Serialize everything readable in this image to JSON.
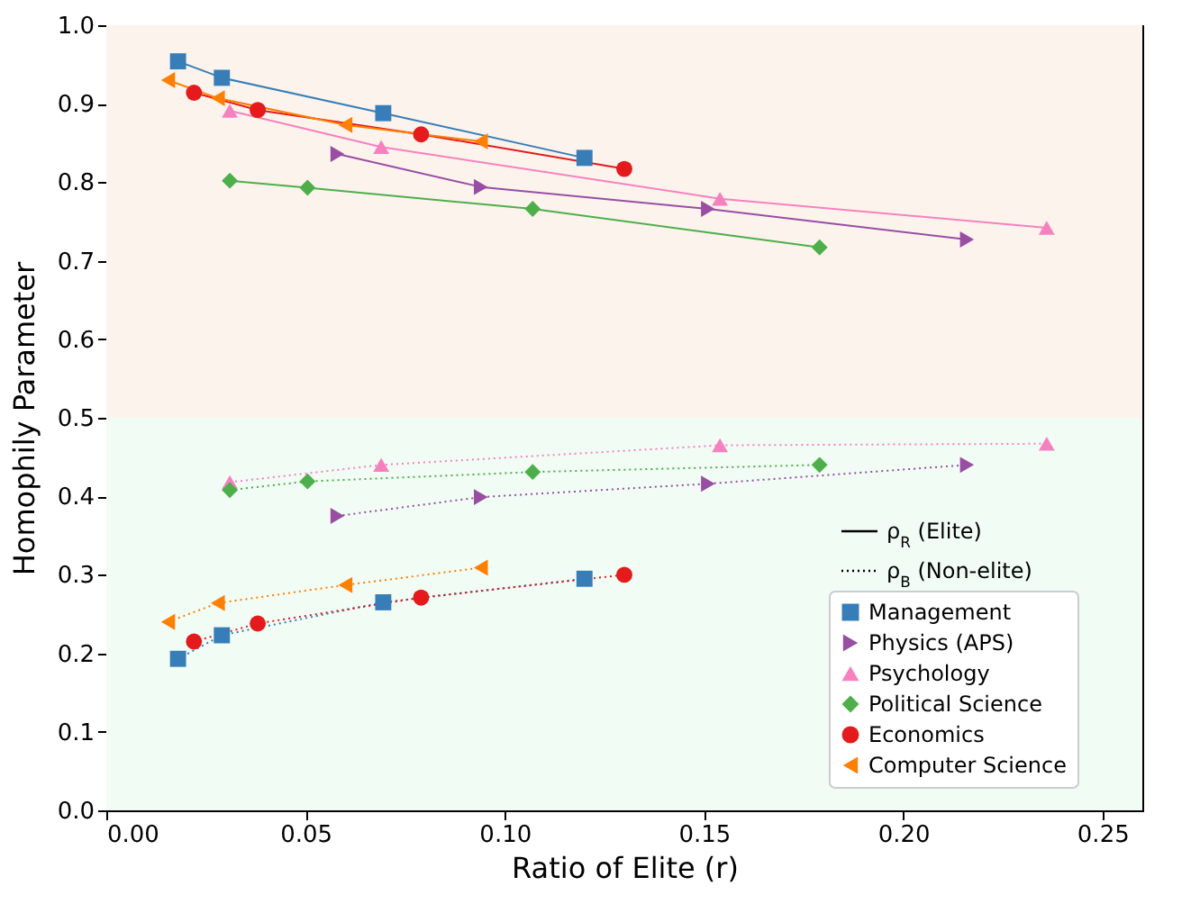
{
  "chart_data": {
    "type": "line",
    "xlabel": "Ratio of Elite (r)",
    "ylabel": "Homophily Parameter",
    "xlim": [
      0,
      0.26
    ],
    "ylim": [
      0,
      1
    ],
    "xticks": [
      {
        "value": 0,
        "label": "0.00"
      },
      {
        "value": 0.05,
        "label": "0.05"
      },
      {
        "value": 0.1,
        "label": "0.10"
      },
      {
        "value": 0.15,
        "label": "0.15"
      },
      {
        "value": 0.2,
        "label": "0.20"
      },
      {
        "value": 0.25,
        "label": "0.25"
      }
    ],
    "yticks": [
      {
        "value": 0,
        "label": "0.0"
      },
      {
        "value": 0.1,
        "label": "0.1"
      },
      {
        "value": 0.2,
        "label": "0.2"
      },
      {
        "value": 0.3,
        "label": "0.3"
      },
      {
        "value": 0.4,
        "label": "0.4"
      },
      {
        "value": 0.5,
        "label": "0.5"
      },
      {
        "value": 0.6,
        "label": "0.6"
      },
      {
        "value": 0.7,
        "label": "0.7"
      },
      {
        "value": 0.8,
        "label": "0.8"
      },
      {
        "value": 0.9,
        "label": "0.9"
      },
      {
        "value": 1,
        "label": "1.0"
      }
    ],
    "grid": false,
    "legend": "bottom right",
    "annotations": [
      "ρ$_{R}$ (Elite)",
      "ρ$_{B}$ (Non-elite)"
    ],
    "bands": [
      {
        "axis": "y",
        "from": 0.5,
        "to": 1,
        "color": "#fdf3ed"
      },
      {
        "axis": "y",
        "from": 0,
        "to": 0.5,
        "color": "#f1fcf5"
      }
    ],
    "series": [
      {
        "name": "Management",
        "color": "#377eb8",
        "marker": "square",
        "line_style": "solid",
        "x": [
          0.018,
          0.029,
          0.0695,
          0.12
        ],
        "values": [
          0.954,
          0.933,
          0.888,
          0.831
        ]
      },
      {
        "color": "#377eb8",
        "marker": "square",
        "line_style": "dotted",
        "x": [
          0.018,
          0.029,
          0.0695,
          0.12
        ],
        "values": [
          0.193,
          0.223,
          0.265,
          0.295
        ]
      },
      {
        "name": "Physics (APS)",
        "color": "#984ea3",
        "marker": "triangle-right",
        "line_style": "solid",
        "x": [
          0.058,
          0.094,
          0.151,
          0.216
        ],
        "values": [
          0.836,
          0.794,
          0.766,
          0.727
        ]
      },
      {
        "color": "#984ea3",
        "marker": "triangle-right",
        "line_style": "dotted",
        "x": [
          0.058,
          0.094,
          0.151,
          0.216
        ],
        "values": [
          0.375,
          0.399,
          0.416,
          0.44
        ]
      },
      {
        "name": "Psychology",
        "color": "#f781bf",
        "marker": "triangle",
        "line_style": "solid",
        "x": [
          0.031,
          0.069,
          0.154,
          0.236
        ],
        "values": [
          0.891,
          0.845,
          0.779,
          0.742
        ]
      },
      {
        "color": "#f781bf",
        "marker": "triangle",
        "line_style": "dotted",
        "x": [
          0.031,
          0.069,
          0.154,
          0.236
        ],
        "values": [
          0.418,
          0.44,
          0.465,
          0.467
        ]
      },
      {
        "name": "Political Science",
        "color": "#4daf4a",
        "marker": "diamond",
        "line_style": "solid",
        "x": [
          0.031,
          0.0505,
          0.107,
          0.179
        ],
        "values": [
          0.802,
          0.793,
          0.766,
          0.717
        ]
      },
      {
        "color": "#4daf4a",
        "marker": "diamond",
        "line_style": "dotted",
        "x": [
          0.031,
          0.0505,
          0.107,
          0.179
        ],
        "values": [
          0.408,
          0.419,
          0.431,
          0.44
        ]
      },
      {
        "name": "Economics",
        "color": "#e41a1c",
        "marker": "circle",
        "line_style": "solid",
        "x": [
          0.022,
          0.038,
          0.079,
          0.13
        ],
        "values": [
          0.914,
          0.892,
          0.861,
          0.817
        ]
      },
      {
        "color": "#e41a1c",
        "marker": "circle",
        "line_style": "dotted",
        "x": [
          0.022,
          0.038,
          0.079,
          0.13
        ],
        "values": [
          0.215,
          0.238,
          0.271,
          0.3
        ]
      },
      {
        "name": "Computer Science",
        "color": "#ff7f00",
        "marker": "triangle-left",
        "line_style": "solid",
        "x": [
          0.0155,
          0.028,
          0.06,
          0.094
        ],
        "values": [
          0.93,
          0.907,
          0.873,
          0.852
        ]
      },
      {
        "color": "#ff7f00",
        "marker": "triangle-left",
        "line_style": "dotted",
        "x": [
          0.0155,
          0.028,
          0.06,
          0.094
        ],
        "values": [
          0.24,
          0.264,
          0.287,
          0.309
        ]
      }
    ]
  }
}
